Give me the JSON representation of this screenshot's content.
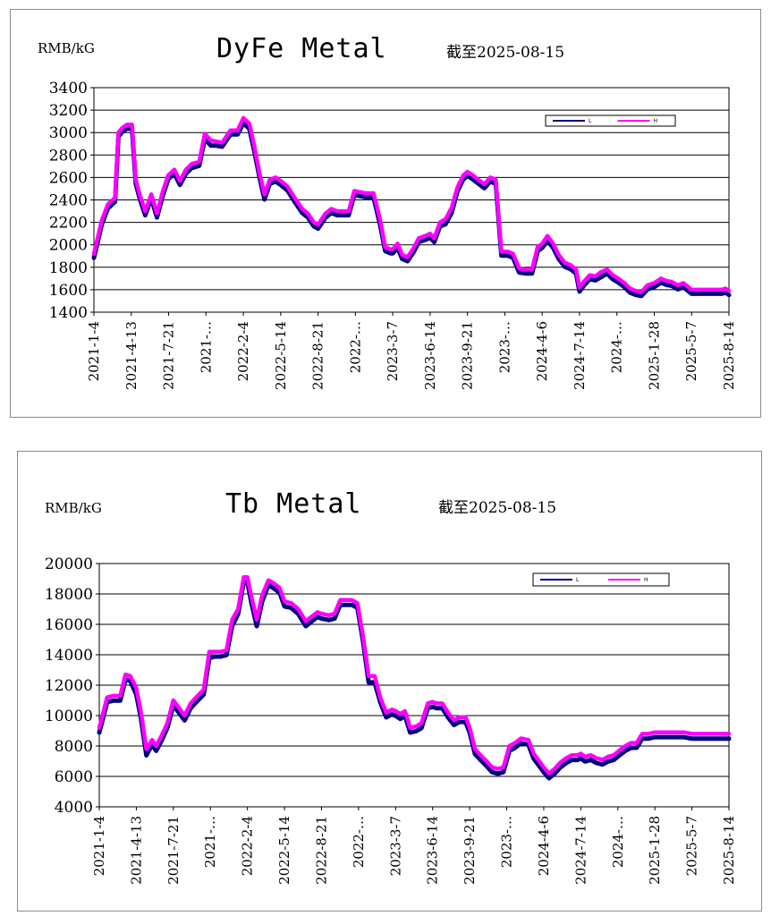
{
  "colors": {
    "series_L": "#000080",
    "series_H": "#ff00ff",
    "grid": "#000000",
    "frame": "#8c8c8c"
  },
  "chart_data": [
    {
      "type": "line",
      "title": "DyFe Metal",
      "ylabel": "RMB/kG",
      "as_of": "截至2025-08-15",
      "ylim": [
        1400,
        3400
      ],
      "yticks": [
        1400,
        1600,
        1800,
        2000,
        2200,
        2400,
        2600,
        2800,
        3000,
        3200,
        3400
      ],
      "grid": true,
      "legend_position": "top-right",
      "x_tick_labels": [
        "2021-1-4",
        "2021-4-13",
        "2021-7-21",
        "2021-…",
        "2022-2-4",
        "2022-5-14",
        "2022-8-21",
        "2022-…",
        "2023-3-7",
        "2023-6-14",
        "2023-9-21",
        "2023-…",
        "2024-4-6",
        "2024-7-14",
        "2024-…",
        "2025-1-28",
        "2025-5-7",
        "2025-8-14"
      ],
      "x": [
        "2021-01-04",
        "2021-01-25",
        "2021-02-10",
        "2021-03-01",
        "2021-03-10",
        "2021-03-20",
        "2021-04-01",
        "2021-04-15",
        "2021-04-25",
        "2021-05-06",
        "2021-05-20",
        "2021-06-05",
        "2021-06-20",
        "2021-07-05",
        "2021-07-20",
        "2021-08-05",
        "2021-08-20",
        "2021-09-05",
        "2021-09-20",
        "2021-10-10",
        "2021-10-25",
        "2021-11-10",
        "2021-11-25",
        "2021-12-10",
        "2022-01-01",
        "2022-01-20",
        "2022-02-04",
        "2022-02-20",
        "2022-03-05",
        "2022-03-20",
        "2022-04-01",
        "2022-04-15",
        "2022-05-01",
        "2022-05-14",
        "2022-06-01",
        "2022-06-20",
        "2022-07-10",
        "2022-07-25",
        "2022-08-10",
        "2022-08-21",
        "2022-09-10",
        "2022-09-25",
        "2022-10-10",
        "2022-10-25",
        "2022-11-10",
        "2022-11-25",
        "2022-12-10",
        "2022-12-25",
        "2023-01-15",
        "2023-02-01",
        "2023-02-15",
        "2023-03-01",
        "2023-03-07",
        "2023-03-20",
        "2023-04-01",
        "2023-04-15",
        "2023-05-01",
        "2023-05-15",
        "2023-06-01",
        "2023-06-14",
        "2023-06-25",
        "2023-07-10",
        "2023-07-25",
        "2023-08-10",
        "2023-08-25",
        "2023-09-10",
        "2023-09-21",
        "2023-10-05",
        "2023-10-20",
        "2023-11-05",
        "2023-11-20",
        "2023-12-05",
        "2023-12-20",
        "2024-01-05",
        "2024-01-20",
        "2024-02-05",
        "2024-02-25",
        "2024-03-10",
        "2024-03-25",
        "2024-04-06",
        "2024-04-20",
        "2024-05-05",
        "2024-05-20",
        "2024-06-05",
        "2024-06-20",
        "2024-07-05",
        "2024-07-14",
        "2024-07-25",
        "2024-08-10",
        "2024-08-25",
        "2024-09-10",
        "2024-09-25",
        "2024-10-10",
        "2024-10-25",
        "2024-11-10",
        "2024-11-25",
        "2024-12-10",
        "2024-12-25",
        "2025-01-10",
        "2025-01-28",
        "2025-02-15",
        "2025-03-01",
        "2025-03-15",
        "2025-04-01",
        "2025-04-15",
        "2025-05-07",
        "2025-05-25",
        "2025-06-10",
        "2025-06-25",
        "2025-07-10",
        "2025-07-25",
        "2025-08-05",
        "2025-08-14"
      ],
      "series": [
        {
          "name": "L",
          "values": [
            1900,
            2200,
            2340,
            2400,
            2980,
            3020,
            3050,
            3050,
            2560,
            2420,
            2280,
            2430,
            2260,
            2450,
            2600,
            2650,
            2550,
            2650,
            2700,
            2720,
            2960,
            2900,
            2900,
            2890,
            3000,
            3000,
            3100,
            3050,
            2850,
            2600,
            2420,
            2560,
            2580,
            2550,
            2500,
            2400,
            2300,
            2260,
            2180,
            2160,
            2260,
            2300,
            2280,
            2280,
            2280,
            2460,
            2450,
            2440,
            2440,
            2200,
            1960,
            1940,
            1940,
            1990,
            1890,
            1870,
            1950,
            2040,
            2060,
            2080,
            2040,
            2180,
            2200,
            2300,
            2490,
            2600,
            2630,
            2600,
            2560,
            2520,
            2580,
            2560,
            1920,
            1920,
            1900,
            1770,
            1760,
            1760,
            1960,
            1990,
            2050,
            1990,
            1890,
            1820,
            1800,
            1760,
            1600,
            1650,
            1710,
            1700,
            1730,
            1760,
            1710,
            1680,
            1640,
            1590,
            1570,
            1560,
            1620,
            1640,
            1680,
            1660,
            1650,
            1620,
            1640,
            1580,
            1580,
            1580,
            1580,
            1580,
            1580,
            1590,
            1570
          ]
        },
        {
          "name": "H",
          "values": [
            1920,
            2220,
            2360,
            2420,
            3000,
            3040,
            3070,
            3070,
            2580,
            2440,
            2300,
            2450,
            2280,
            2470,
            2620,
            2670,
            2570,
            2670,
            2720,
            2740,
            2990,
            2930,
            2920,
            2910,
            3020,
            3020,
            3130,
            3080,
            2880,
            2620,
            2450,
            2580,
            2600,
            2570,
            2520,
            2420,
            2320,
            2280,
            2200,
            2180,
            2280,
            2320,
            2300,
            2300,
            2300,
            2480,
            2470,
            2460,
            2460,
            2230,
            1980,
            1960,
            1960,
            2010,
            1910,
            1890,
            1970,
            2060,
            2080,
            2100,
            2060,
            2200,
            2230,
            2330,
            2510,
            2620,
            2650,
            2620,
            2580,
            2540,
            2600,
            2580,
            1940,
            1940,
            1920,
            1790,
            1780,
            1780,
            1980,
            2010,
            2080,
            2010,
            1910,
            1840,
            1820,
            1780,
            1620,
            1670,
            1730,
            1720,
            1760,
            1780,
            1730,
            1700,
            1660,
            1610,
            1590,
            1580,
            1640,
            1660,
            1700,
            1680,
            1670,
            1640,
            1660,
            1600,
            1600,
            1600,
            1600,
            1600,
            1600,
            1610,
            1590
          ]
        }
      ]
    },
    {
      "type": "line",
      "title": "Tb Metal",
      "ylabel": "RMB/kG",
      "as_of": "截至2025-08-15",
      "ylim": [
        4000,
        20000
      ],
      "yticks": [
        4000,
        6000,
        8000,
        10000,
        12000,
        14000,
        16000,
        18000,
        20000
      ],
      "grid": true,
      "legend_position": "top-right",
      "x_tick_labels": [
        "2021-1-4",
        "2021-4-13",
        "2021-7-21",
        "2021-…",
        "2022-2-4",
        "2022-5-14",
        "2022-8-21",
        "2022-…",
        "2023-3-7",
        "2023-6-14",
        "2023-9-21",
        "2023-…",
        "2024-4-6",
        "2024-7-14",
        "2024-…",
        "2025-1-28",
        "2025-5-7",
        "2025-8-14"
      ],
      "x": [
        "2021-01-04",
        "2021-01-25",
        "2021-02-10",
        "2021-03-01",
        "2021-03-15",
        "2021-03-28",
        "2021-04-13",
        "2021-04-25",
        "2021-05-10",
        "2021-05-25",
        "2021-06-05",
        "2021-06-20",
        "2021-07-05",
        "2021-07-21",
        "2021-08-05",
        "2021-08-20",
        "2021-09-05",
        "2021-09-20",
        "2021-10-10",
        "2021-10-25",
        "2021-11-10",
        "2021-11-25",
        "2021-12-10",
        "2021-12-25",
        "2022-01-10",
        "2022-01-25",
        "2022-02-04",
        "2022-02-15",
        "2022-03-01",
        "2022-03-15",
        "2022-04-01",
        "2022-04-15",
        "2022-05-01",
        "2022-05-14",
        "2022-06-01",
        "2022-06-20",
        "2022-07-10",
        "2022-07-25",
        "2022-08-10",
        "2022-08-21",
        "2022-09-10",
        "2022-09-25",
        "2022-10-10",
        "2022-10-25",
        "2022-11-10",
        "2022-11-25",
        "2022-12-10",
        "2022-12-25",
        "2023-01-10",
        "2023-01-25",
        "2023-02-10",
        "2023-02-25",
        "2023-03-07",
        "2023-03-20",
        "2023-04-01",
        "2023-04-15",
        "2023-05-01",
        "2023-05-15",
        "2023-06-01",
        "2023-06-14",
        "2023-06-25",
        "2023-07-10",
        "2023-07-25",
        "2023-08-10",
        "2023-08-25",
        "2023-09-10",
        "2023-09-21",
        "2023-10-05",
        "2023-10-20",
        "2023-11-05",
        "2023-11-20",
        "2023-12-05",
        "2023-12-20",
        "2024-01-05",
        "2024-01-20",
        "2024-02-05",
        "2024-02-25",
        "2024-03-10",
        "2024-03-25",
        "2024-04-06",
        "2024-04-20",
        "2024-05-05",
        "2024-05-20",
        "2024-06-05",
        "2024-06-20",
        "2024-07-05",
        "2024-07-14",
        "2024-07-25",
        "2024-08-10",
        "2024-08-25",
        "2024-09-10",
        "2024-09-25",
        "2024-10-10",
        "2024-10-25",
        "2024-11-10",
        "2024-11-25",
        "2024-12-10",
        "2024-12-25",
        "2025-01-10",
        "2025-01-28",
        "2025-02-15",
        "2025-03-01",
        "2025-03-15",
        "2025-04-01",
        "2025-04-15",
        "2025-05-07",
        "2025-05-25",
        "2025-06-10",
        "2025-06-25",
        "2025-07-10",
        "2025-07-25",
        "2025-08-05",
        "2025-08-14"
      ],
      "series": [
        {
          "name": "L",
          "values": [
            9000,
            11000,
            11100,
            11100,
            12500,
            12400,
            11500,
            10000,
            7500,
            8200,
            7800,
            8500,
            9300,
            10800,
            10300,
            9800,
            10600,
            11000,
            11500,
            13900,
            14000,
            14000,
            14100,
            16000,
            16800,
            18900,
            18900,
            17500,
            16000,
            17600,
            18700,
            18500,
            18200,
            17300,
            17200,
            16800,
            16000,
            16300,
            16600,
            16500,
            16400,
            16500,
            17400,
            17400,
            17400,
            17200,
            15000,
            12300,
            12300,
            11000,
            10000,
            10200,
            10100,
            9900,
            10100,
            9000,
            9100,
            9300,
            10600,
            10700,
            10600,
            10600,
            10000,
            9500,
            9700,
            9700,
            9000,
            7600,
            7200,
            6800,
            6400,
            6300,
            6400,
            7800,
            8000,
            8300,
            8200,
            7300,
            6800,
            6400,
            6000,
            6300,
            6700,
            7000,
            7200,
            7200,
            7300,
            7100,
            7200,
            7000,
            6900,
            7100,
            7200,
            7500,
            7800,
            8000,
            8000,
            8600,
            8600,
            8700,
            8700,
            8700,
            8700,
            8700,
            8700,
            8600,
            8600,
            8600,
            8600,
            8600,
            8600,
            8600,
            8600
          ]
        },
        {
          "name": "H",
          "values": [
            9200,
            11200,
            11300,
            11300,
            12700,
            12600,
            11800,
            10300,
            7800,
            8400,
            8000,
            8700,
            9500,
            11000,
            10500,
            10000,
            10800,
            11200,
            11700,
            14200,
            14200,
            14200,
            14300,
            16300,
            17000,
            19100,
            19100,
            17800,
            16300,
            17900,
            18900,
            18700,
            18400,
            17500,
            17400,
            17000,
            16200,
            16500,
            16800,
            16700,
            16600,
            16700,
            17600,
            17600,
            17600,
            17400,
            15200,
            12600,
            12600,
            11200,
            10200,
            10400,
            10300,
            10100,
            10300,
            9200,
            9300,
            9500,
            10800,
            10900,
            10800,
            10800,
            10200,
            9700,
            9900,
            9900,
            9200,
            7800,
            7400,
            7000,
            6600,
            6500,
            6600,
            8000,
            8200,
            8500,
            8400,
            7500,
            7000,
            6600,
            6200,
            6500,
            6900,
            7200,
            7400,
            7400,
            7500,
            7300,
            7400,
            7200,
            7100,
            7300,
            7400,
            7700,
            8000,
            8200,
            8200,
            8800,
            8800,
            8900,
            8900,
            8900,
            8900,
            8900,
            8900,
            8800,
            8800,
            8800,
            8800,
            8800,
            8800,
            8800,
            8800
          ]
        }
      ]
    }
  ]
}
